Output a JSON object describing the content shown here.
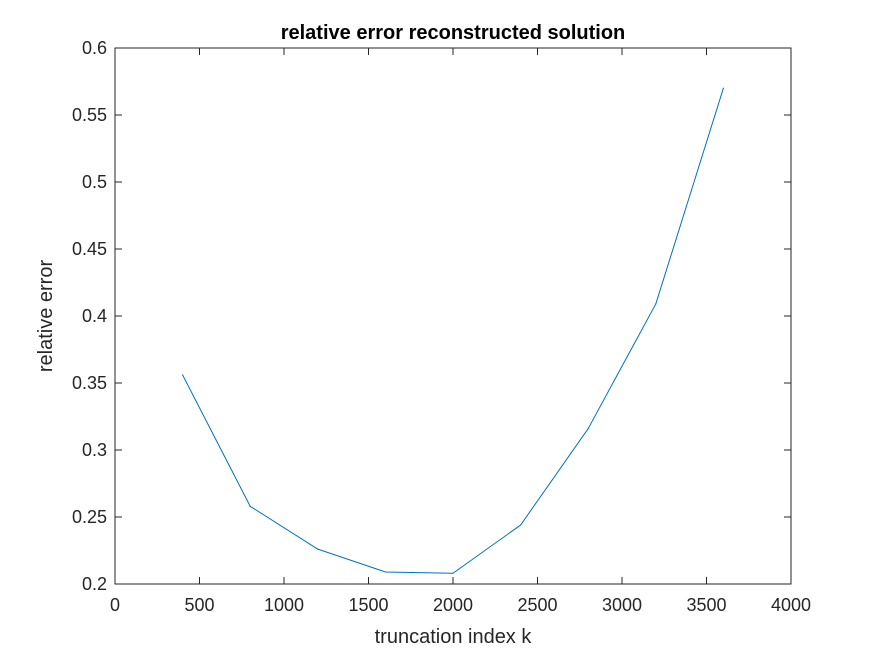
{
  "chart_data": {
    "type": "line",
    "title": "relative error reconstructed solution",
    "xlabel": "truncation index k",
    "ylabel": "relative error",
    "xlim": [
      0,
      4000
    ],
    "ylim": [
      0.2,
      0.6
    ],
    "x_ticks": [
      0,
      500,
      1000,
      1500,
      2000,
      2500,
      3000,
      3500,
      4000
    ],
    "y_ticks": [
      0.2,
      0.25,
      0.3,
      0.35,
      0.4,
      0.45,
      0.5,
      0.55,
      0.6
    ],
    "x_tick_labels": [
      "0",
      "500",
      "1000",
      "1500",
      "2000",
      "2500",
      "3000",
      "3500",
      "4000"
    ],
    "y_tick_labels": [
      "0.2",
      "0.25",
      "0.3",
      "0.35",
      "0.4",
      "0.45",
      "0.5",
      "0.55",
      "0.6"
    ],
    "grid": false,
    "box": true,
    "series": [
      {
        "color": "#0072BD",
        "x": [
          400,
          800,
          1200,
          1600,
          2000,
          2400,
          2800,
          3200,
          3600
        ],
        "y": [
          0.356,
          0.258,
          0.226,
          0.209,
          0.208,
          0.244,
          0.316,
          0.409,
          0.57
        ]
      }
    ]
  }
}
